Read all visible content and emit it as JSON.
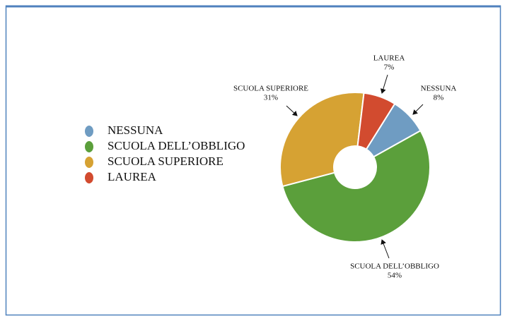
{
  "chart_data": {
    "type": "donut",
    "categories": [
      "NESSUNA",
      "SCUOLA DELL’OBBLIGO",
      "SCUOLA SUPERIORE",
      "LAUREA"
    ],
    "values": [
      8,
      54,
      31,
      7
    ],
    "value_labels": [
      "8%",
      "54%",
      "31%",
      "7%"
    ],
    "colors": [
      "#6f9cc2",
      "#5b9f3b",
      "#d6a233",
      "#d24b2f"
    ],
    "legend": "left"
  }
}
